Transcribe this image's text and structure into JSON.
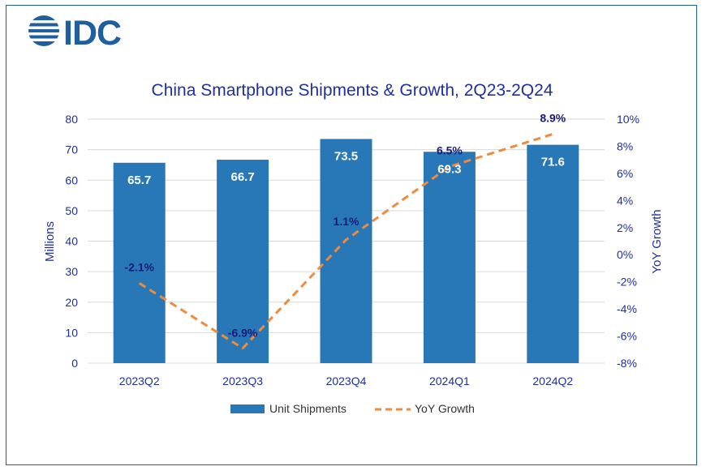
{
  "logo": {
    "text": "IDC",
    "color": "#1f5f9e"
  },
  "chart_data": {
    "type": "bar",
    "title": "China Smartphone Shipments & Growth, 2Q23-2Q24",
    "categories": [
      "2023Q2",
      "2023Q3",
      "2023Q4",
      "2024Q1",
      "2024Q2"
    ],
    "series": [
      {
        "name": "Unit Shipments",
        "type": "bar",
        "axis": "left",
        "color": "#2878b8",
        "values": [
          65.7,
          66.7,
          73.5,
          69.3,
          71.6
        ],
        "labels": [
          "65.7",
          "66.7",
          "73.5",
          "69.3",
          "71.6"
        ]
      },
      {
        "name": "YoY Growth",
        "type": "line",
        "style": "dashed",
        "axis": "right",
        "color": "#f08a3c",
        "values": [
          -2.1,
          -6.9,
          1.1,
          6.5,
          8.9
        ],
        "labels": [
          "-2.1%",
          "-6.9%",
          "1.1%",
          "6.5%",
          "8.9%"
        ]
      }
    ],
    "ylabel": "Millions",
    "ylim": [
      0,
      80
    ],
    "yticks": [
      "0",
      "10",
      "20",
      "30",
      "40",
      "50",
      "60",
      "70",
      "80"
    ],
    "y2label": "YoY Growth",
    "y2lim": [
      -8,
      10
    ],
    "y2ticks": [
      "-8%",
      "-6%",
      "-4%",
      "-2%",
      "0%",
      "2%",
      "4%",
      "6%",
      "8%",
      "10%"
    ],
    "grid": true,
    "legend": "bottom",
    "title_color": "#1f2f9e",
    "axis_text_color": "#1f2f9e"
  }
}
